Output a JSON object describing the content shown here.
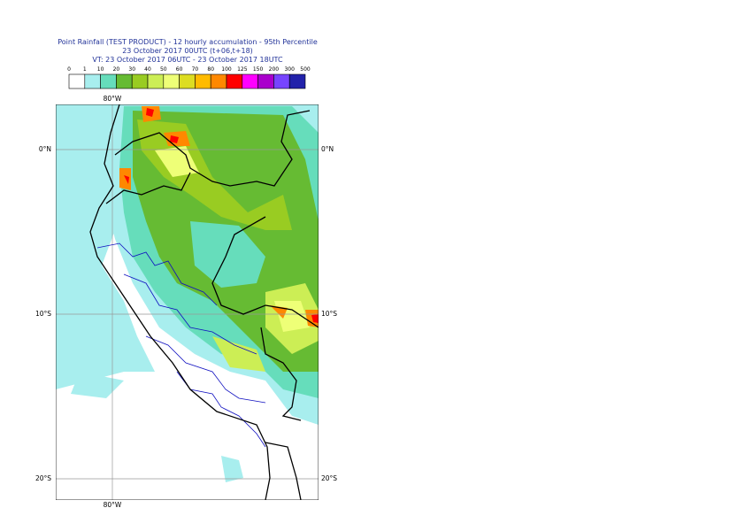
{
  "header": {
    "title": "Point Rainfall (TEST PRODUCT) - 12 hourly accumulation - 95th Percentile",
    "base_time": "23 October 2017 00UTC (t+06,t+18)",
    "valid_time": "VT: 23 October 2017 06UTC - 23 October 2017 18UTC"
  },
  "legend": {
    "labels": [
      "0",
      "1",
      "10",
      "20",
      "30",
      "40",
      "50",
      "60",
      "70",
      "80",
      "100",
      "125",
      "150",
      "200",
      "300",
      "500"
    ],
    "colors": [
      "#ffffff",
      "#a8eeee",
      "#66ddbb",
      "#66bb33",
      "#99cc22",
      "#ccee55",
      "#eeff77",
      "#dddd22",
      "#ffbb00",
      "#ff8800",
      "#ff0000",
      "#ff00ff",
      "#aa00cc",
      "#7744ff",
      "#2222aa",
      "#000055"
    ]
  },
  "map": {
    "longitude_label": "80°W",
    "latitude_labels": [
      "0°N",
      "10°S",
      "20°S"
    ]
  }
}
